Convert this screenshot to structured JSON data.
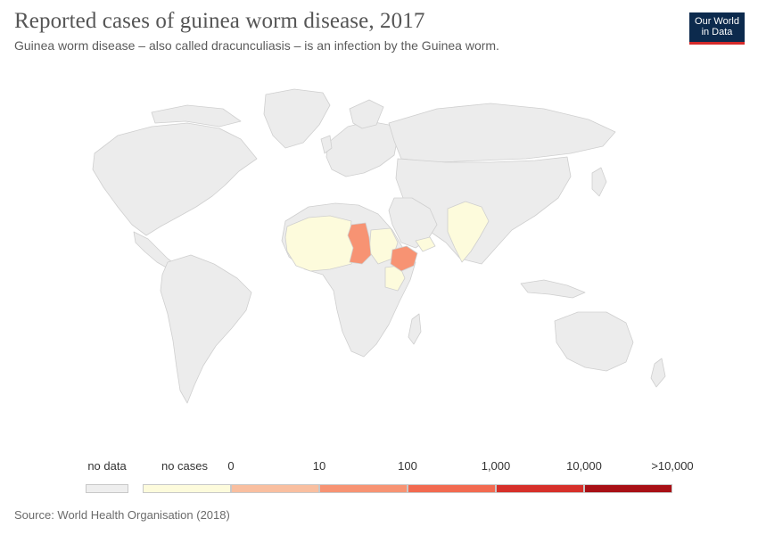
{
  "title": "Reported cases of guinea worm disease, 2017",
  "subtitle": "Guinea worm disease – also called dracunculiasis – is an infection by the Guinea worm.",
  "logo": {
    "line1": "Our World",
    "line2": "in Data"
  },
  "source": "Source: World Health Organisation (2018)",
  "legend": {
    "no_data": {
      "label": "no data",
      "color": "#eeeeee"
    },
    "no_cases": {
      "label": "no cases",
      "color": "#fdfbdc"
    },
    "bins": [
      {
        "from": "0",
        "to": "10",
        "color": "#f9bfa0"
      },
      {
        "from": "10",
        "to": "100",
        "color": "#f79373"
      },
      {
        "from": "100",
        "to": "1,000",
        "color": "#f26a50"
      },
      {
        "from": "1,000",
        "to": "10,000",
        "color": "#d6302a"
      },
      {
        "from": "10,000",
        "to": ">10,000",
        "color": "#a81016"
      }
    ],
    "tick_labels": [
      "0",
      "10",
      "100",
      "1,000",
      "10,000",
      ">10,000"
    ]
  },
  "map": {
    "land_color": "#ececec",
    "border_color": "#cfcfcf",
    "highlighted": [
      {
        "region": "Chad",
        "category": "10-100",
        "color": "#f79373"
      },
      {
        "region": "Ethiopia",
        "category": "10-100",
        "color": "#f79373"
      }
    ],
    "no_cases_regions": [
      "Mali",
      "Niger",
      "Nigeria",
      "Sudan",
      "South Sudan",
      "Senegal",
      "Burkina Faso",
      "Ghana",
      "Cote d'Ivoire",
      "Togo",
      "Benin",
      "Cameroon",
      "Central African Republic",
      "Mauritania",
      "Kenya",
      "Uganda",
      "Yemen",
      "India"
    ]
  }
}
